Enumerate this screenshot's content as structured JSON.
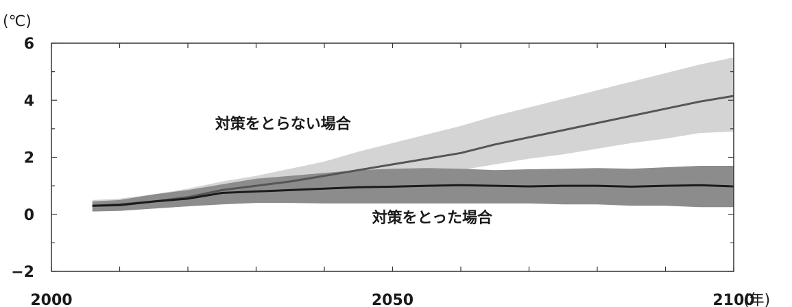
{
  "chart_data": {
    "type": "line",
    "ylabel": "(℃)",
    "xlabel": "(年)",
    "xlim": [
      2000,
      2100
    ],
    "ylim": [
      -2,
      6
    ],
    "x_ticks": [
      "2000",
      "2050",
      "2100"
    ],
    "y_ticks": [
      "−2",
      "0",
      "2",
      "4",
      "6"
    ],
    "grid": false,
    "legend": "none",
    "annotations": [
      {
        "text": "対策をとらない場合",
        "x": 2024,
        "y": 3.0
      },
      {
        "text": "対策をとった場合",
        "x": 2047,
        "y": -0.3
      }
    ],
    "series": [
      {
        "name": "対策をとらない場合",
        "color": "#555555",
        "band_color": "#d4d4d4",
        "x": [
          2006,
          2010,
          2015,
          2020,
          2025,
          2030,
          2035,
          2040,
          2045,
          2050,
          2055,
          2060,
          2065,
          2070,
          2075,
          2080,
          2085,
          2090,
          2095,
          2100
        ],
        "values": [
          0.3,
          0.35,
          0.45,
          0.6,
          0.85,
          1.0,
          1.15,
          1.35,
          1.55,
          1.75,
          1.95,
          2.15,
          2.45,
          2.7,
          2.95,
          3.2,
          3.45,
          3.7,
          3.95,
          4.15
        ],
        "upper": [
          0.5,
          0.55,
          0.7,
          0.9,
          1.15,
          1.35,
          1.6,
          1.85,
          2.2,
          2.5,
          2.8,
          3.1,
          3.45,
          3.75,
          4.05,
          4.35,
          4.65,
          4.95,
          5.25,
          5.5
        ],
        "lower": [
          0.1,
          0.15,
          0.25,
          0.35,
          0.5,
          0.65,
          0.75,
          0.9,
          1.05,
          1.25,
          1.4,
          1.55,
          1.75,
          1.95,
          2.1,
          2.3,
          2.5,
          2.65,
          2.85,
          2.9
        ]
      },
      {
        "name": "対策をとった場合",
        "color": "#1a1a1a",
        "band_color": "#8c8c8c",
        "x": [
          2006,
          2010,
          2015,
          2020,
          2025,
          2030,
          2035,
          2040,
          2045,
          2050,
          2055,
          2060,
          2065,
          2070,
          2075,
          2080,
          2085,
          2090,
          2095,
          2100
        ],
        "values": [
          0.3,
          0.32,
          0.45,
          0.55,
          0.75,
          0.8,
          0.85,
          0.9,
          0.95,
          0.97,
          1.0,
          1.02,
          1.0,
          0.98,
          1.0,
          1.0,
          0.97,
          1.0,
          1.02,
          0.98
        ],
        "upper": [
          0.45,
          0.5,
          0.7,
          0.85,
          1.05,
          1.25,
          1.35,
          1.45,
          1.55,
          1.6,
          1.62,
          1.6,
          1.55,
          1.58,
          1.6,
          1.62,
          1.6,
          1.65,
          1.7,
          1.7
        ],
        "lower": [
          0.1,
          0.12,
          0.2,
          0.28,
          0.35,
          0.4,
          0.4,
          0.38,
          0.38,
          0.38,
          0.38,
          0.38,
          0.38,
          0.38,
          0.35,
          0.35,
          0.3,
          0.3,
          0.25,
          0.25
        ]
      }
    ]
  }
}
